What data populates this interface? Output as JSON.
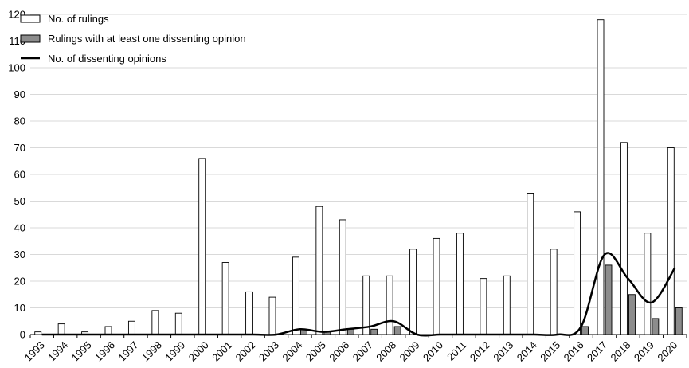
{
  "chart_data": {
    "type": "bar",
    "categories": [
      "1993",
      "1994",
      "1995",
      "1996",
      "1997",
      "1998",
      "1999",
      "2000",
      "2001",
      "2002",
      "2003",
      "2004",
      "2005",
      "2006",
      "2007",
      "2008",
      "2009",
      "2010",
      "2011",
      "2012",
      "2013",
      "2014",
      "2015",
      "2016",
      "2017",
      "2018",
      "2019",
      "2020"
    ],
    "series": [
      {
        "name": "No. of rulings",
        "kind": "bar",
        "color": "#ffffff",
        "values": [
          1,
          4,
          1,
          3,
          5,
          9,
          8,
          66,
          27,
          16,
          14,
          29,
          48,
          43,
          22,
          22,
          32,
          36,
          38,
          21,
          22,
          53,
          32,
          46,
          118,
          72,
          38,
          70
        ]
      },
      {
        "name": "Rulings with at least one dissenting opinion",
        "kind": "bar",
        "color": "#8c8c8c",
        "values": [
          0,
          0,
          0,
          0,
          0,
          0,
          0,
          0,
          0,
          0,
          0,
          2,
          1,
          2,
          2,
          3,
          0,
          0,
          0,
          0,
          0,
          0,
          0,
          3,
          26,
          15,
          6,
          10
        ]
      },
      {
        "name": "No. of dissenting opinions",
        "kind": "line",
        "color": "#000000",
        "values": [
          0,
          0,
          0,
          0,
          0,
          0,
          0,
          0,
          0,
          0,
          0,
          2,
          1,
          2,
          3,
          5,
          0,
          0,
          0,
          0,
          0,
          0,
          0,
          3,
          30,
          21,
          12,
          25
        ]
      }
    ],
    "yticks": [
      0,
      10,
      20,
      30,
      40,
      50,
      60,
      70,
      80,
      90,
      100,
      110,
      120
    ],
    "ylim": [
      0,
      120
    ],
    "grid": true,
    "legend_position": "top-left"
  }
}
